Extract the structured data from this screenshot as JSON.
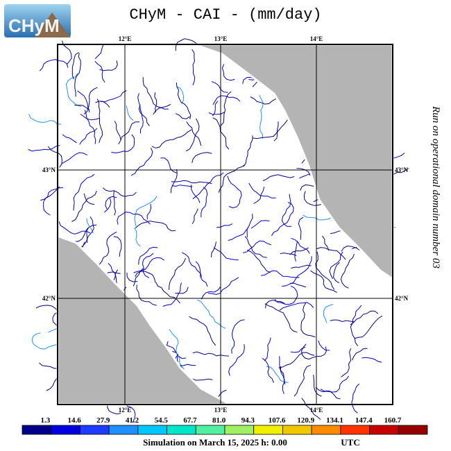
{
  "logo": "CHyM",
  "title": "CHyM - CAI - (mm/day)",
  "lon_labels_top": [
    "12°E",
    "13°E",
    "14°E"
  ],
  "lon_labels_bottom": [
    "12°E",
    "13°E",
    "14°E"
  ],
  "lat_labels_left": [
    "43°N",
    "42°N"
  ],
  "lat_labels_right": [
    "43°N",
    "42°N"
  ],
  "side_note": "Run on operational domain number 03",
  "colorbar": {
    "labels": [
      "1.3",
      "14.6",
      "27.9",
      "41.2",
      "54.5",
      "67.7",
      "81.0",
      "94.3",
      "107.6",
      "120.9",
      "134.1",
      "147.4",
      "160.7"
    ],
    "colors": [
      "#00008b",
      "#0000e0",
      "#1e3cff",
      "#1e90ff",
      "#00c8ff",
      "#00e6c8",
      "#50f0a0",
      "#a0f064",
      "#f0f000",
      "#f0c800",
      "#ff8c00",
      "#ff3200",
      "#c80000",
      "#960000"
    ]
  },
  "footer": {
    "text": "Simulation on March 15, 2025 h: 0.00",
    "zone": "UTC"
  }
}
